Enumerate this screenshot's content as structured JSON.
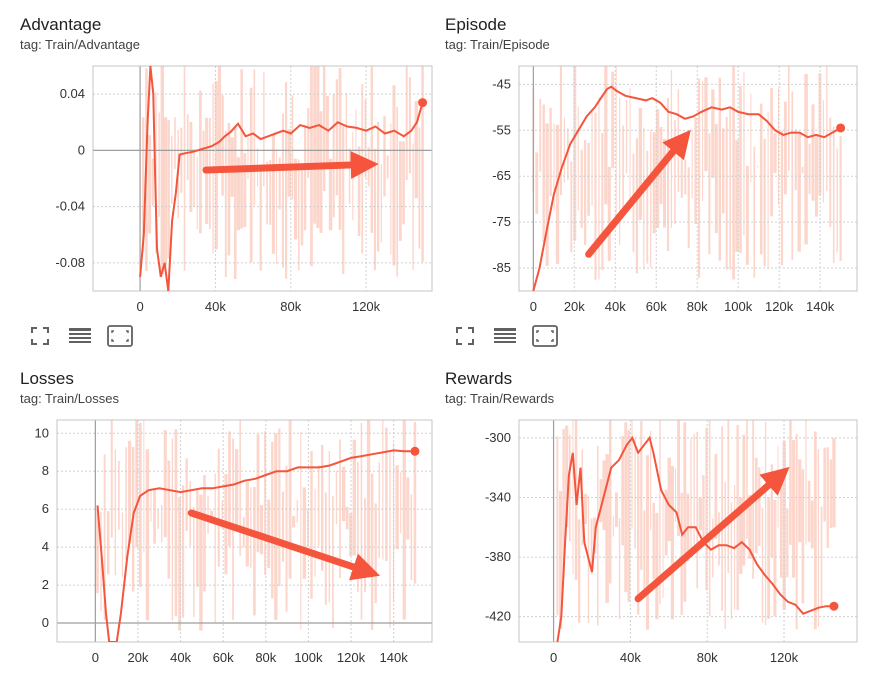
{
  "colors": {
    "line": "#f4553c",
    "raw": "#fcd5cb",
    "grid": "#d0d0d0",
    "zero": "#9e9e9e",
    "arrow": "#f4553c"
  },
  "toolbar": {
    "icons": [
      "fullscreen-icon",
      "data-table-icon",
      "fit-domain-icon"
    ]
  },
  "panels": [
    {
      "title": "Advantage",
      "tag": "tag: Train/Advantage"
    },
    {
      "title": "Episode",
      "tag": "tag: Train/Episode"
    },
    {
      "title": "Losses",
      "tag": "tag: Train/Losses"
    },
    {
      "title": "Rewards",
      "tag": "tag: Train/Rewards"
    }
  ],
  "chart_data": [
    {
      "type": "line",
      "title": "Advantage",
      "subtitle": "tag: Train/Advantage",
      "xlim": [
        -25000,
        155000
      ],
      "ylim": [
        -0.1,
        0.06
      ],
      "xticks": [
        0,
        40000,
        80000,
        120000
      ],
      "xtick_labels": [
        "0",
        "40k",
        "80k",
        "120k"
      ],
      "yticks": [
        0.04,
        0,
        -0.04,
        -0.08
      ],
      "ytick_labels": [
        "0.04",
        "0",
        "-0.04",
        "-0.08"
      ],
      "grid": true,
      "arrow": {
        "direction": "up",
        "from": [
          35000,
          -0.014
        ],
        "to": [
          120000,
          -0.01
        ]
      },
      "series": [
        {
          "values": [
            [
              0,
              -0.09
            ],
            [
              2000,
              -0.06
            ],
            [
              4000,
              0.02
            ],
            [
              5500,
              0.06
            ],
            [
              7000,
              0.04
            ],
            [
              8000,
              -0.02
            ],
            [
              9000,
              -0.07
            ],
            [
              11000,
              -0.09
            ],
            [
              13000,
              -0.08
            ],
            [
              15000,
              -0.1
            ],
            [
              17000,
              -0.05
            ],
            [
              19000,
              -0.03
            ],
            [
              21000,
              -0.003
            ],
            [
              24000,
              -0.002
            ],
            [
              28000,
              -0.001
            ],
            [
              33000,
              0.001
            ],
            [
              38000,
              0.003
            ],
            [
              42000,
              0.006
            ],
            [
              45000,
              0.01
            ],
            [
              48000,
              0.013
            ],
            [
              52000,
              0.019
            ],
            [
              56000,
              0.01
            ],
            [
              60000,
              0.012
            ],
            [
              64000,
              0.008
            ],
            [
              68000,
              0.01
            ],
            [
              72000,
              0.012
            ],
            [
              76000,
              0.014
            ],
            [
              80000,
              0.012
            ],
            [
              85000,
              0.018
            ],
            [
              90000,
              0.016
            ],
            [
              95000,
              0.018
            ],
            [
              100000,
              0.014
            ],
            [
              105000,
              0.02
            ],
            [
              110000,
              0.017
            ],
            [
              115000,
              0.016
            ],
            [
              120000,
              0.014
            ],
            [
              125000,
              0.017
            ],
            [
              130000,
              0.012
            ],
            [
              135000,
              0.014
            ],
            [
              140000,
              0.01
            ],
            [
              144000,
              0.014
            ],
            [
              147000,
              0.02
            ],
            [
              150000,
              0.034
            ]
          ]
        }
      ]
    },
    {
      "type": "line",
      "title": "Episode",
      "subtitle": "tag: Train/Episode",
      "xlim": [
        -7000,
        158000
      ],
      "ylim": [
        -90,
        -41
      ],
      "xticks": [
        0,
        20000,
        40000,
        60000,
        80000,
        100000,
        120000,
        140000
      ],
      "xtick_labels": [
        "0",
        "20k",
        "40k",
        "60k",
        "80k",
        "100k",
        "120k",
        "140k"
      ],
      "yticks": [
        -45,
        -55,
        -65,
        -75,
        -85
      ],
      "ytick_labels": [
        "-45",
        "-55",
        "-65",
        "-75",
        "-85"
      ],
      "grid": true,
      "arrow": {
        "direction": "up",
        "from": [
          27000,
          -82
        ],
        "to": [
          73000,
          -57
        ]
      },
      "series": [
        {
          "values": [
            [
              0,
              -90
            ],
            [
              3000,
              -85
            ],
            [
              6000,
              -78
            ],
            [
              10000,
              -69
            ],
            [
              14000,
              -63
            ],
            [
              18000,
              -58
            ],
            [
              22000,
              -55
            ],
            [
              26000,
              -52
            ],
            [
              30000,
              -50
            ],
            [
              33000,
              -48
            ],
            [
              36000,
              -46
            ],
            [
              38000,
              -45.5
            ],
            [
              41000,
              -46.5
            ],
            [
              45000,
              -47.5
            ],
            [
              50000,
              -48
            ],
            [
              55000,
              -48.5
            ],
            [
              58000,
              -48
            ],
            [
              62000,
              -49
            ],
            [
              66000,
              -51
            ],
            [
              70000,
              -51.5
            ],
            [
              74000,
              -52.5
            ],
            [
              78000,
              -52
            ],
            [
              82000,
              -51
            ],
            [
              87000,
              -50
            ],
            [
              92000,
              -50.5
            ],
            [
              96000,
              -50
            ],
            [
              100000,
              -51
            ],
            [
              105000,
              -51.5
            ],
            [
              110000,
              -51.5
            ],
            [
              114000,
              -53
            ],
            [
              118000,
              -55
            ],
            [
              122000,
              -56
            ],
            [
              126000,
              -55.5
            ],
            [
              130000,
              -55.5
            ],
            [
              134000,
              -56.5
            ],
            [
              138000,
              -56
            ],
            [
              142000,
              -56.5
            ],
            [
              146000,
              -55.5
            ],
            [
              150000,
              -54.5
            ]
          ]
        }
      ]
    },
    {
      "type": "line",
      "title": "Losses",
      "subtitle": "tag: Train/Losses",
      "xlim": [
        -18000,
        158000
      ],
      "ylim": [
        -1,
        10.7
      ],
      "xticks": [
        0,
        20000,
        40000,
        60000,
        80000,
        100000,
        120000,
        140000
      ],
      "xtick_labels": [
        "0",
        "20k",
        "40k",
        "60k",
        "80k",
        "100k",
        "120k",
        "140k"
      ],
      "yticks": [
        10,
        8,
        6,
        4,
        2,
        0
      ],
      "ytick_labels": [
        "10",
        "8",
        "6",
        "4",
        "2",
        "0"
      ],
      "grid": true,
      "arrow": {
        "direction": "down",
        "from": [
          45000,
          5.8
        ],
        "to": [
          128000,
          2.7
        ]
      },
      "series": [
        {
          "values": [
            [
              1000,
              6.2
            ],
            [
              3000,
              3.5
            ],
            [
              5000,
              0.5
            ],
            [
              6500,
              -1
            ],
            [
              10000,
              -1
            ],
            [
              12000,
              0.5
            ],
            [
              15000,
              3.5
            ],
            [
              18000,
              5.8
            ],
            [
              21000,
              6.7
            ],
            [
              25000,
              7
            ],
            [
              30000,
              7.1
            ],
            [
              35000,
              7
            ],
            [
              40000,
              6.9
            ],
            [
              45000,
              7
            ],
            [
              50000,
              7.1
            ],
            [
              55000,
              7.1
            ],
            [
              60000,
              7.2
            ],
            [
              65000,
              7.3
            ],
            [
              70000,
              7.5
            ],
            [
              75000,
              7.6
            ],
            [
              80000,
              7.8
            ],
            [
              85000,
              8
            ],
            [
              90000,
              8
            ],
            [
              95000,
              8.2
            ],
            [
              100000,
              8.2
            ],
            [
              105000,
              8.2
            ],
            [
              110000,
              8.3
            ],
            [
              115000,
              8.5
            ],
            [
              120000,
              8.7
            ],
            [
              125000,
              8.8
            ],
            [
              130000,
              8.9
            ],
            [
              135000,
              9
            ],
            [
              140000,
              9.1
            ],
            [
              145000,
              9.05
            ],
            [
              150000,
              9.05
            ]
          ]
        }
      ]
    },
    {
      "type": "line",
      "title": "Rewards",
      "subtitle": "tag: Train/Rewards",
      "xlim": [
        -18000,
        158000
      ],
      "ylim": [
        -437,
        -288
      ],
      "xticks": [
        0,
        40000,
        80000,
        120000
      ],
      "xtick_labels": [
        "0",
        "40k",
        "80k",
        "120k"
      ],
      "yticks": [
        -300,
        -340,
        -380,
        -420
      ],
      "ytick_labels": [
        "-300",
        "-340",
        "-380",
        "-420"
      ],
      "grid": true,
      "arrow": {
        "direction": "up",
        "from": [
          44000,
          -408
        ],
        "to": [
          118000,
          -325
        ]
      },
      "series": [
        {
          "values": [
            [
              2000,
              -437
            ],
            [
              4000,
              -420
            ],
            [
              6000,
              -370
            ],
            [
              8000,
              -325
            ],
            [
              10000,
              -310
            ],
            [
              12000,
              -345
            ],
            [
              14000,
              -320
            ],
            [
              16000,
              -370
            ],
            [
              18000,
              -380
            ],
            [
              20000,
              -390
            ],
            [
              22000,
              -360
            ],
            [
              26000,
              -340
            ],
            [
              30000,
              -320
            ],
            [
              34000,
              -315
            ],
            [
              38000,
              -305
            ],
            [
              41000,
              -300
            ],
            [
              44000,
              -310
            ],
            [
              47000,
              -305
            ],
            [
              50000,
              -300
            ],
            [
              52000,
              -310
            ],
            [
              56000,
              -335
            ],
            [
              60000,
              -345
            ],
            [
              64000,
              -350
            ],
            [
              67000,
              -365
            ],
            [
              70000,
              -360
            ],
            [
              74000,
              -360
            ],
            [
              78000,
              -370
            ],
            [
              82000,
              -375
            ],
            [
              86000,
              -372
            ],
            [
              90000,
              -372
            ],
            [
              94000,
              -374
            ],
            [
              98000,
              -370
            ],
            [
              102000,
              -375
            ],
            [
              106000,
              -385
            ],
            [
              110000,
              -392
            ],
            [
              114000,
              -398
            ],
            [
              118000,
              -405
            ],
            [
              122000,
              -410
            ],
            [
              126000,
              -412
            ],
            [
              130000,
              -418
            ],
            [
              134000,
              -416
            ],
            [
              138000,
              -414
            ],
            [
              142000,
              -413
            ],
            [
              146000,
              -413
            ]
          ]
        }
      ]
    }
  ]
}
